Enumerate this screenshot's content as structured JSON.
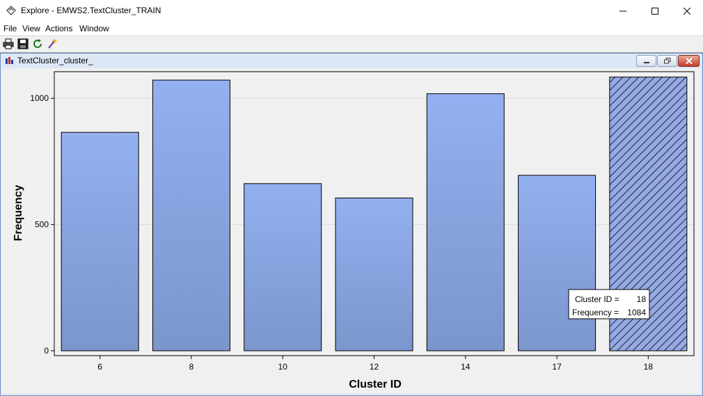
{
  "window": {
    "title": "Explore - EMWS2.TextCluster_TRAIN",
    "minimize_glyph": "—",
    "maximize_glyph": "☐",
    "close_glyph": "✕"
  },
  "menu": {
    "file": "File",
    "view": "View",
    "actions": "Actions",
    "window": "Window"
  },
  "toolbar": {
    "icons": [
      "print-icon",
      "save-icon",
      "refresh-icon",
      "wizard-icon"
    ]
  },
  "subwindow": {
    "title": "TextCluster_cluster_"
  },
  "tooltip": {
    "line1_label": "Cluster ID =",
    "line1_value": "18",
    "line2_label": "Frequency =",
    "line2_value": "1084"
  },
  "colors": {
    "bar_top": "#93b0f0",
    "bar_bottom": "#7b96cc",
    "selected_bar": "#96a9e2",
    "plot_bg": "#f0f0f0"
  },
  "chart_data": {
    "type": "bar",
    "categories": [
      "6",
      "8",
      "10",
      "12",
      "14",
      "17",
      "18"
    ],
    "values": [
      865,
      1072,
      662,
      605,
      1018,
      695,
      1084
    ],
    "selected_index": 6,
    "title": "",
    "xlabel": "Cluster ID",
    "ylabel": "Frequency",
    "ylim": [
      0,
      1100
    ],
    "yticks": [
      0,
      500,
      1000
    ],
    "grid": true,
    "legend": "none"
  }
}
